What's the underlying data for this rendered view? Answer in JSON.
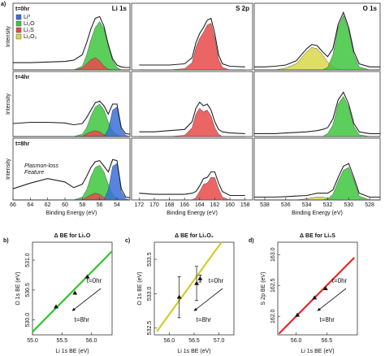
{
  "chart_data": [
    {
      "type": "spectrum",
      "panel": "a)",
      "title": "Li 1s",
      "label": "t=0hr",
      "ylabel": "Intensity",
      "legend": [
        {
          "name": "Li⁰",
          "color": "#3a6fd8"
        },
        {
          "name": "Li₂O",
          "color": "#3ec63e"
        },
        {
          "name": "Li₂S",
          "color": "#e84a4a"
        },
        {
          "name": "Li₂O₂",
          "color": "#d8d84a"
        }
      ],
      "x": [
        66,
        64,
        62,
        60,
        59,
        58,
        57.5,
        57,
        56.5,
        56,
        55.5,
        55,
        54.5,
        54,
        53.5,
        53,
        52.5
      ],
      "xlim": [
        66,
        52.5
      ],
      "ylim": [
        0,
        1.1
      ],
      "series": [
        {
          "color": "#3ec63e",
          "fill": true,
          "values": [
            0,
            0,
            0,
            0,
            0,
            0.06,
            0.25,
            0.5,
            0.7,
            0.8,
            0.68,
            0.4,
            0.15,
            0.04,
            0,
            0,
            0
          ]
        },
        {
          "color": "#e84a4a",
          "fill": true,
          "values": [
            0,
            0,
            0,
            0,
            0,
            0.03,
            0.1,
            0.17,
            0.2,
            0.15,
            0.06,
            0.01,
            0,
            0,
            0,
            0,
            0
          ]
        },
        {
          "color": "#222222",
          "fill": false,
          "values": [
            0.12,
            0.12,
            0.13,
            0.14,
            0.16,
            0.25,
            0.45,
            0.68,
            0.85,
            0.88,
            0.72,
            0.42,
            0.18,
            0.08,
            0.05,
            0.04,
            0.04
          ]
        }
      ]
    },
    {
      "type": "spectrum",
      "title": "S 2p",
      "x": [
        172,
        170,
        168,
        166,
        165,
        164.5,
        164,
        163.5,
        163,
        162.5,
        162,
        161.5,
        161,
        160,
        158
      ],
      "xlim": [
        173,
        157
      ],
      "ylim": [
        0,
        1.1
      ],
      "series": [
        {
          "color": "#e84a4a",
          "fill": true,
          "values": [
            0,
            0,
            0,
            0.02,
            0.12,
            0.37,
            0.52,
            0.62,
            0.74,
            0.77,
            0.52,
            0.18,
            0.04,
            0,
            0
          ]
        },
        {
          "color": "#222222",
          "fill": false,
          "values": [
            0.08,
            0.08,
            0.08,
            0.1,
            0.2,
            0.45,
            0.6,
            0.7,
            0.82,
            0.85,
            0.6,
            0.25,
            0.1,
            0.06,
            0.05
          ]
        }
      ]
    },
    {
      "type": "spectrum",
      "title": "O 1s",
      "x": [
        539,
        538,
        537,
        536,
        535,
        534,
        533.5,
        533,
        532.5,
        532,
        531.5,
        531,
        530.5,
        530,
        529.5,
        529,
        528,
        527
      ],
      "xlim": [
        539,
        527
      ],
      "ylim": [
        0,
        1.1
      ],
      "series": [
        {
          "color": "#d8d84a",
          "fill": true,
          "values": [
            0,
            0,
            0,
            0.03,
            0.1,
            0.3,
            0.37,
            0.35,
            0.25,
            0.13,
            0.05,
            0.01,
            0,
            0,
            0,
            0,
            0,
            0
          ]
        },
        {
          "color": "#3ec63e",
          "fill": true,
          "values": [
            0,
            0,
            0,
            0,
            0,
            0,
            0,
            0,
            0,
            0.04,
            0.25,
            0.7,
            0.9,
            0.65,
            0.25,
            0.05,
            0,
            0
          ]
        },
        {
          "color": "#222222",
          "fill": false,
          "values": [
            0.05,
            0.05,
            0.06,
            0.08,
            0.15,
            0.35,
            0.42,
            0.4,
            0.3,
            0.22,
            0.35,
            0.75,
            0.95,
            0.7,
            0.3,
            0.1,
            0.05,
            0.05
          ]
        }
      ]
    },
    {
      "type": "spectrum",
      "label": "t=4hr",
      "ylabel": "Intensity",
      "x": [
        66,
        64,
        62,
        60,
        59,
        58,
        57.5,
        57,
        56.5,
        56,
        55.5,
        55,
        54.5,
        54,
        53.5,
        53,
        52.5
      ],
      "xlim": [
        66,
        52.5
      ],
      "ylim": [
        0,
        1.1
      ],
      "series": [
        {
          "color": "#3ec63e",
          "fill": true,
          "values": [
            0,
            0,
            0,
            0,
            0,
            0.04,
            0.15,
            0.35,
            0.5,
            0.55,
            0.45,
            0.25,
            0.1,
            0.03,
            0,
            0,
            0
          ]
        },
        {
          "color": "#e84a4a",
          "fill": true,
          "values": [
            0,
            0,
            0,
            0,
            0,
            0,
            0.05,
            0.08,
            0.1,
            0.08,
            0.03,
            0,
            0,
            0,
            0,
            0,
            0
          ]
        },
        {
          "color": "#3a6fd8",
          "fill": true,
          "values": [
            0,
            0,
            0,
            0,
            0,
            0,
            0,
            0,
            0,
            0,
            0,
            0.12,
            0.45,
            0.5,
            0.12,
            0.02,
            0
          ]
        },
        {
          "color": "#222222",
          "fill": false,
          "values": [
            0.22,
            0.24,
            0.24,
            0.23,
            0.2,
            0.22,
            0.32,
            0.45,
            0.57,
            0.6,
            0.52,
            0.38,
            0.55,
            0.55,
            0.15,
            0.05,
            0.04
          ]
        }
      ]
    },
    {
      "type": "spectrum",
      "x": [
        172,
        170,
        168,
        166,
        165,
        164.5,
        164,
        163.5,
        163,
        162.5,
        162,
        161.5,
        161,
        160,
        158
      ],
      "xlim": [
        173,
        157
      ],
      "ylim": [
        0,
        1.1
      ],
      "series": [
        {
          "color": "#e84a4a",
          "fill": true,
          "values": [
            0,
            0,
            0,
            0.02,
            0.15,
            0.38,
            0.48,
            0.42,
            0.45,
            0.35,
            0.15,
            0.04,
            0,
            0,
            0
          ]
        },
        {
          "color": "#222222",
          "fill": false,
          "values": [
            0.08,
            0.08,
            0.1,
            0.12,
            0.25,
            0.48,
            0.58,
            0.52,
            0.55,
            0.45,
            0.25,
            0.12,
            0.08,
            0.06,
            0.05
          ]
        }
      ]
    },
    {
      "type": "spectrum",
      "x": [
        539,
        538,
        537,
        536,
        535,
        534,
        533.5,
        533,
        532.5,
        532,
        531.5,
        531,
        530.5,
        530,
        529.5,
        529,
        528,
        527
      ],
      "xlim": [
        539,
        527
      ],
      "ylim": [
        0,
        1.1
      ],
      "series": [
        {
          "color": "#3ec63e",
          "fill": true,
          "values": [
            0,
            0,
            0,
            0,
            0,
            0,
            0,
            0,
            0,
            0.05,
            0.2,
            0.55,
            0.68,
            0.5,
            0.17,
            0.03,
            0,
            0
          ]
        },
        {
          "color": "#222222",
          "fill": false,
          "values": [
            0.05,
            0.05,
            0.05,
            0.06,
            0.07,
            0.08,
            0.09,
            0.1,
            0.12,
            0.15,
            0.3,
            0.62,
            0.75,
            0.55,
            0.22,
            0.08,
            0.05,
            0.05
          ]
        }
      ]
    },
    {
      "type": "spectrum",
      "label": "t=8hr",
      "ylabel": "Intensity",
      "annotation": [
        "Plasmon-loss",
        "Feature"
      ],
      "xlabel": "Binding Energy (eV)",
      "x": [
        66,
        64,
        62,
        60,
        59,
        58,
        57.5,
        57,
        56.5,
        56,
        55.5,
        55,
        54.5,
        54,
        53.5,
        53,
        52.5
      ],
      "xlim": [
        66,
        52.5
      ],
      "ylim": [
        0,
        1.1
      ],
      "xticks": [
        66,
        64,
        62,
        60,
        58,
        56,
        54
      ],
      "series": [
        {
          "color": "#3ec63e",
          "fill": true,
          "values": [
            0,
            0,
            0,
            0,
            0,
            0.05,
            0.18,
            0.42,
            0.58,
            0.62,
            0.5,
            0.28,
            0.1,
            0.03,
            0,
            0,
            0
          ]
        },
        {
          "color": "#e84a4a",
          "fill": true,
          "values": [
            0,
            0,
            0,
            0,
            0,
            0,
            0.05,
            0.09,
            0.12,
            0.1,
            0.04,
            0,
            0,
            0,
            0,
            0,
            0
          ]
        },
        {
          "color": "#3a6fd8",
          "fill": true,
          "values": [
            0,
            0,
            0,
            0,
            0,
            0,
            0,
            0,
            0,
            0,
            0,
            0.18,
            0.6,
            0.65,
            0.15,
            0.02,
            0
          ]
        },
        {
          "color": "#222222",
          "fill": false,
          "values": [
            0.2,
            0.3,
            0.38,
            0.32,
            0.22,
            0.28,
            0.42,
            0.58,
            0.68,
            0.7,
            0.6,
            0.5,
            0.72,
            0.7,
            0.2,
            0.05,
            0.04
          ]
        }
      ]
    },
    {
      "type": "spectrum",
      "xlabel": "Binding Energy (eV)",
      "x": [
        172,
        170,
        168,
        166,
        165,
        164.5,
        164,
        163.5,
        163,
        162.5,
        162,
        161.5,
        161,
        160,
        158
      ],
      "xlim": [
        173,
        157
      ],
      "ylim": [
        0,
        1.1
      ],
      "xticks": [
        172,
        170,
        168,
        166,
        164,
        162,
        160,
        158
      ],
      "series": [
        {
          "color": "#e84a4a",
          "fill": true,
          "values": [
            0,
            0,
            0,
            0,
            0,
            0.04,
            0.15,
            0.28,
            0.3,
            0.4,
            0.4,
            0.2,
            0.05,
            0,
            0
          ]
        },
        {
          "color": "#222222",
          "fill": false,
          "values": [
            0.12,
            0.1,
            0.1,
            0.1,
            0.12,
            0.15,
            0.25,
            0.38,
            0.4,
            0.5,
            0.5,
            0.3,
            0.15,
            0.08,
            0.08
          ]
        }
      ]
    },
    {
      "type": "spectrum",
      "xlabel": "Binding Energy (eV)",
      "x": [
        539,
        538,
        537,
        536,
        535,
        534,
        533.5,
        533,
        532.5,
        532,
        531.5,
        531,
        530.5,
        530,
        529.5,
        529,
        528,
        527
      ],
      "xlim": [
        539,
        527
      ],
      "ylim": [
        0,
        1.1
      ],
      "xticks": [
        538,
        536,
        534,
        532,
        530,
        528
      ],
      "series": [
        {
          "color": "#d8d84a",
          "fill": true,
          "values": [
            0,
            0,
            0,
            0,
            0,
            0.02,
            0.04,
            0.05,
            0.05,
            0.03,
            0.01,
            0,
            0,
            0,
            0,
            0,
            0,
            0
          ]
        },
        {
          "color": "#3ec63e",
          "fill": true,
          "values": [
            0,
            0,
            0,
            0,
            0,
            0,
            0,
            0,
            0,
            0.02,
            0.1,
            0.33,
            0.53,
            0.58,
            0.35,
            0.07,
            0,
            0
          ]
        },
        {
          "color": "#222222",
          "fill": false,
          "values": [
            0.05,
            0.05,
            0.05,
            0.06,
            0.07,
            0.08,
            0.1,
            0.12,
            0.12,
            0.12,
            0.18,
            0.4,
            0.6,
            0.65,
            0.4,
            0.12,
            0.05,
            0.05
          ]
        }
      ]
    },
    {
      "type": "scatter",
      "panel": "b)",
      "title": "Δ BE for Li₂O",
      "xlabel": "Li 1s BE (eV)",
      "ylabel": "O 1s BE (eV)",
      "x": [
        55.4,
        55.72,
        55.93
      ],
      "values": [
        530.22,
        530.45,
        530.72
      ],
      "color": "#111111",
      "fit": {
        "x": [
          55.0,
          56.35
        ],
        "values": [
          529.8,
          531.15
        ],
        "color": "#2ec62e"
      },
      "annotations": [
        "t=0hr",
        "t=8hr"
      ],
      "xlim": [
        55.0,
        56.35
      ],
      "ylim": [
        529.75,
        531.3
      ],
      "xticks": [
        {
          "value": 55,
          "label": "55.0"
        },
        {
          "value": 55.5,
          "label": "55.5"
        },
        {
          "value": 56,
          "label": "56.0"
        }
      ],
      "yticks": [
        {
          "value": 530,
          "label": "530.0"
        },
        {
          "value": 530.5,
          "label": "530.5"
        },
        {
          "value": 531,
          "label": "531.0"
        }
      ]
    },
    {
      "type": "scatter",
      "panel": "c)",
      "title": "Δ BE for Li₂O₂",
      "xlabel": "Li 1s BE (eV)",
      "ylabel": "O 1s BE (eV)",
      "x": [
        56.2,
        56.55,
        56.62
      ],
      "values": [
        532.95,
        533.15,
        533.22
      ],
      "errors": [
        0.3,
        0.25,
        0.05
      ],
      "color": "#111111",
      "fit": {
        "x": [
          55.75,
          57.05
        ],
        "values": [
          532.45,
          533.75
        ],
        "color": "#d4cc2a"
      },
      "annotations": [
        "t=0hr",
        "t=8hr"
      ],
      "xlim": [
        55.7,
        57.3
      ],
      "ylim": [
        532.4,
        533.75
      ],
      "xticks": [
        {
          "value": 56,
          "label": "56.0"
        },
        {
          "value": 56.5,
          "label": "56.5"
        },
        {
          "value": 57,
          "label": "57.0"
        }
      ],
      "yticks": [
        {
          "value": 532.5,
          "label": "532.5"
        },
        {
          "value": 533,
          "label": "533.0"
        },
        {
          "value": 533.5,
          "label": "533.5"
        }
      ]
    },
    {
      "type": "scatter",
      "panel": "d)",
      "title": "Δ BE for Li₂S",
      "xlabel": "Li 1s BE (eV)",
      "ylabel": "S 2p BE (eV)",
      "x": [
        56.02,
        56.3,
        56.48
      ],
      "values": [
        162.02,
        162.3,
        162.45
      ],
      "color": "#111111",
      "fit": {
        "x": [
          55.72,
          56.95
        ],
        "values": [
          161.72,
          162.95
        ],
        "color": "#e02a2a"
      },
      "annotations": [
        "t=0hr",
        "t=8hr"
      ],
      "xlim": [
        55.7,
        57.0
      ],
      "ylim": [
        161.7,
        163.2
      ],
      "xticks": [
        {
          "value": 56,
          "label": "56.0"
        },
        {
          "value": 56.5,
          "label": "56.5"
        }
      ],
      "yticks": [
        {
          "value": 162,
          "label": "162.0"
        },
        {
          "value": 162.5,
          "label": "162.5"
        },
        {
          "value": 163,
          "label": "163.0"
        }
      ]
    }
  ]
}
